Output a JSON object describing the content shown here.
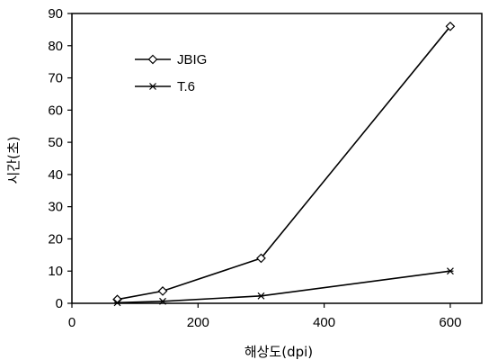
{
  "chart_data": {
    "type": "line",
    "xlabel": "해상도(dpi)",
    "ylabel": "시간(초)",
    "xlim": [
      0,
      650
    ],
    "ylim": [
      0,
      90
    ],
    "xticks": [
      0,
      200,
      400,
      600
    ],
    "yticks": [
      0,
      10,
      20,
      30,
      40,
      50,
      60,
      70,
      80,
      90
    ],
    "grid": false,
    "legend_position": "top-left",
    "series": [
      {
        "name": "JBIG",
        "marker": "diamond",
        "color": "#000000",
        "x": [
          72,
          144,
          300,
          600
        ],
        "y": [
          1.2,
          3.8,
          14.0,
          86.0
        ]
      },
      {
        "name": "T.6",
        "marker": "star",
        "color": "#000000",
        "x": [
          72,
          144,
          300,
          600
        ],
        "y": [
          0.2,
          0.6,
          2.3,
          10.0
        ]
      }
    ]
  }
}
